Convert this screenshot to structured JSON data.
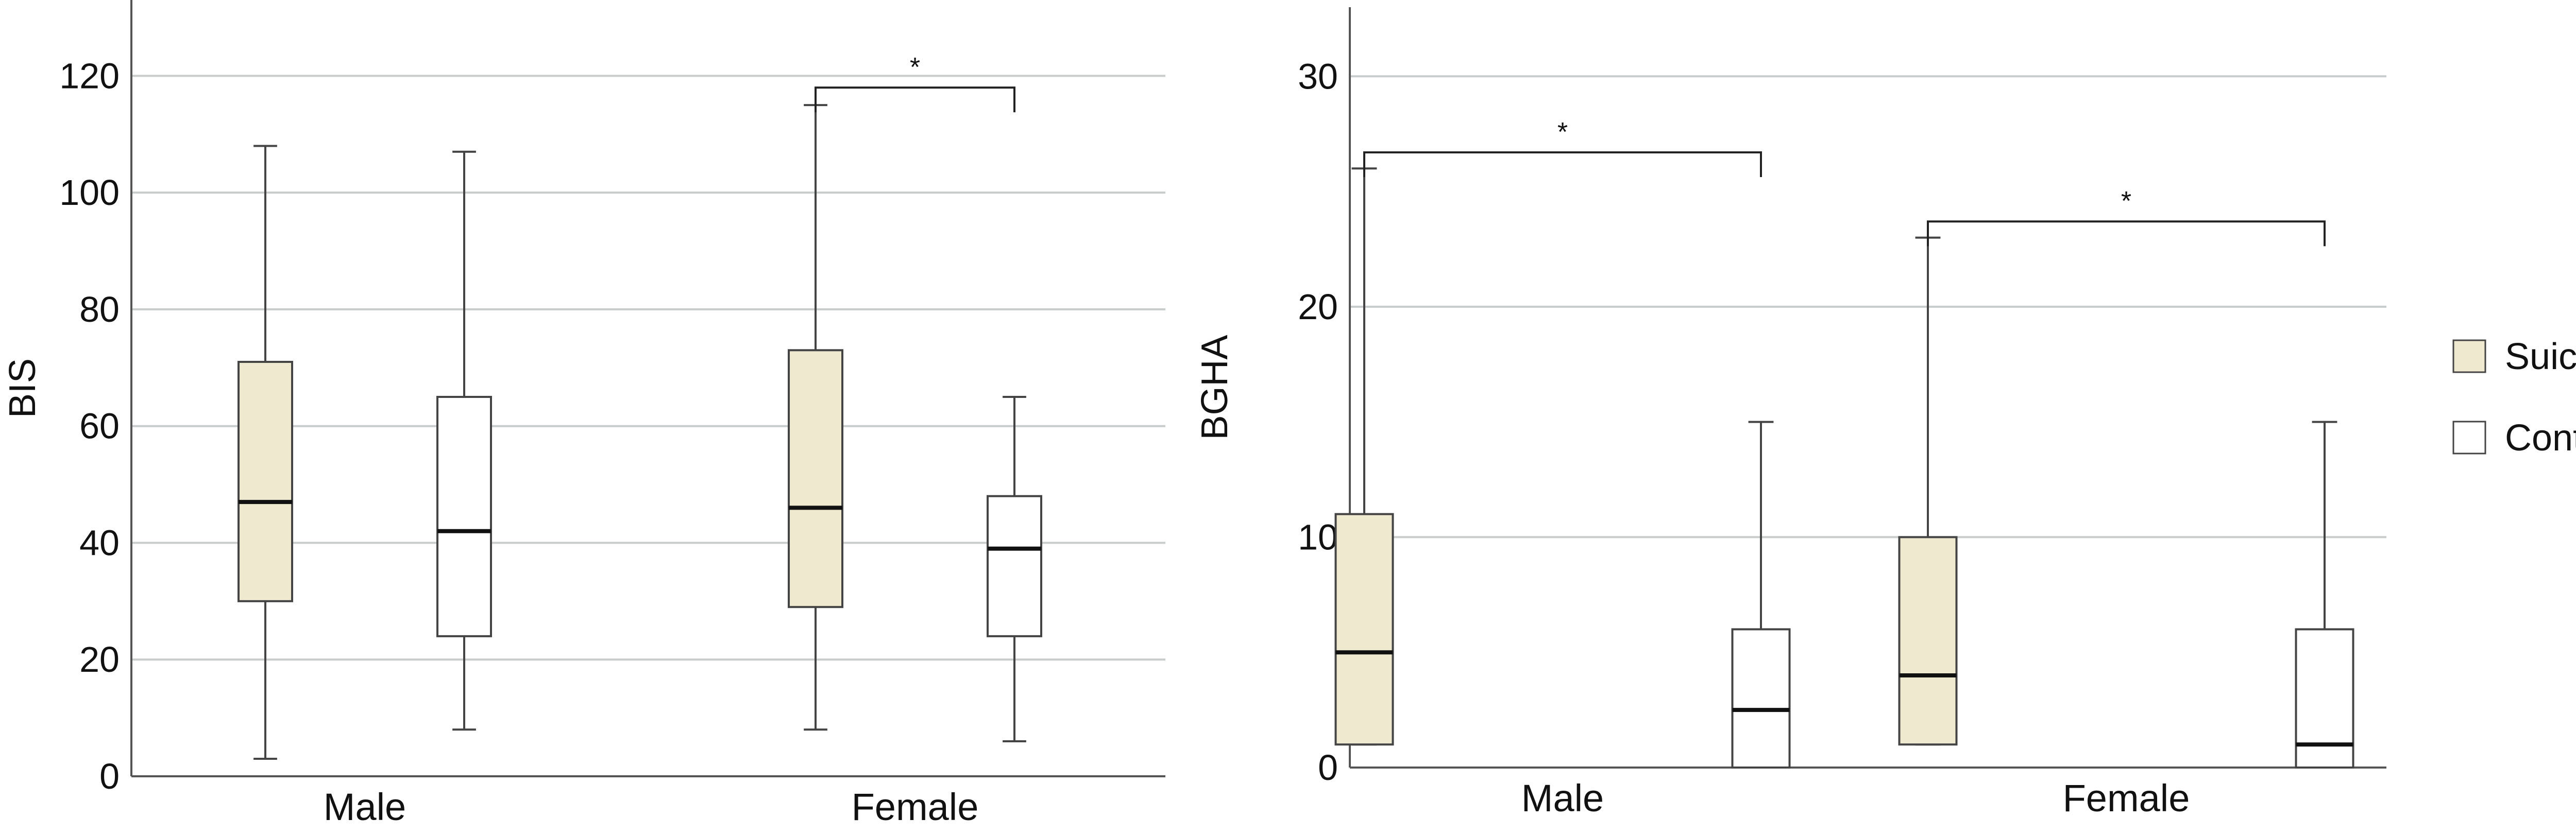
{
  "chart_data": [
    {
      "type": "box",
      "ylabel": "BIS",
      "xlabel": "",
      "ylim": [
        0,
        133
      ],
      "yticks": [
        0,
        20,
        40,
        60,
        80,
        100,
        120
      ],
      "grid": true,
      "categories": [
        "Male",
        "Female"
      ],
      "series": [
        {
          "name": "Suicide",
          "color": "#efe9cf",
          "boxes": [
            {
              "category": "Male",
              "min": 3,
              "q1": 30,
              "median": 47,
              "q3": 71,
              "max": 108
            },
            {
              "category": "Female",
              "min": 8,
              "q1": 29,
              "median": 46,
              "q3": 73,
              "max": 115
            }
          ]
        },
        {
          "name": "Control",
          "color": "#ffffff",
          "boxes": [
            {
              "category": "Male",
              "min": 8,
              "q1": 24,
              "median": 42,
              "q3": 65,
              "max": 107
            },
            {
              "category": "Female",
              "min": 6,
              "q1": 24,
              "median": 39,
              "q3": 48,
              "max": 65
            }
          ]
        }
      ],
      "annotations": [
        {
          "category": "Female",
          "text": "*",
          "bracket_y": 118
        }
      ]
    },
    {
      "type": "box",
      "ylabel": "BGHA",
      "xlabel": "",
      "ylim": [
        0,
        33
      ],
      "yticks": [
        0,
        10,
        20,
        30
      ],
      "grid": true,
      "categories": [
        "Male",
        "Female"
      ],
      "series": [
        {
          "name": "Suicide",
          "color": "#efe9cf",
          "boxes": [
            {
              "category": "Male",
              "min": 1,
              "q1": 1,
              "median": 5,
              "q3": 11,
              "max": 26
            },
            {
              "category": "Female",
              "min": 1,
              "q1": 1,
              "median": 4,
              "q3": 10,
              "max": 23
            }
          ]
        },
        {
          "name": "Control",
          "color": "#ffffff",
          "boxes": [
            {
              "category": "Male",
              "min": 0,
              "q1": 0,
              "median": 2.5,
              "q3": 6,
              "max": 15
            },
            {
              "category": "Female",
              "min": 0,
              "q1": 0,
              "median": 1,
              "q3": 6,
              "max": 15
            }
          ]
        }
      ],
      "annotations": [
        {
          "category": "Male",
          "text": "*",
          "bracket_y": 26.7
        },
        {
          "category": "Female",
          "text": "*",
          "bracket_y": 23.7
        }
      ]
    }
  ],
  "legend": {
    "items": [
      {
        "label": "Suicide",
        "color": "#efe9cf"
      },
      {
        "label": "Control",
        "color": "#ffffff"
      }
    ]
  },
  "colors": {
    "grid": "#c8cccc",
    "axis": "#555555",
    "box_stroke": "#444444"
  }
}
